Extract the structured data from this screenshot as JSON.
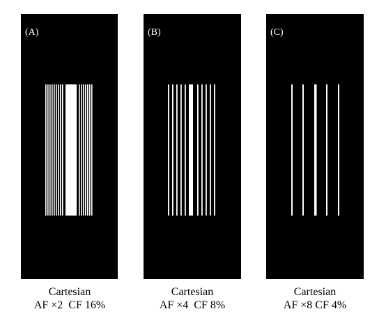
{
  "panels": [
    {
      "label": "(A)",
      "caption": [
        "Cartesian",
        "AF ×2  CF 16%"
      ]
    },
    {
      "label": "(B)",
      "caption": [
        "Cartesian",
        "AF ×4  CF 8%"
      ]
    },
    {
      "label": "(C)",
      "caption": [
        "Cartesian",
        "AF ×8 CF 4%"
      ]
    }
  ]
}
